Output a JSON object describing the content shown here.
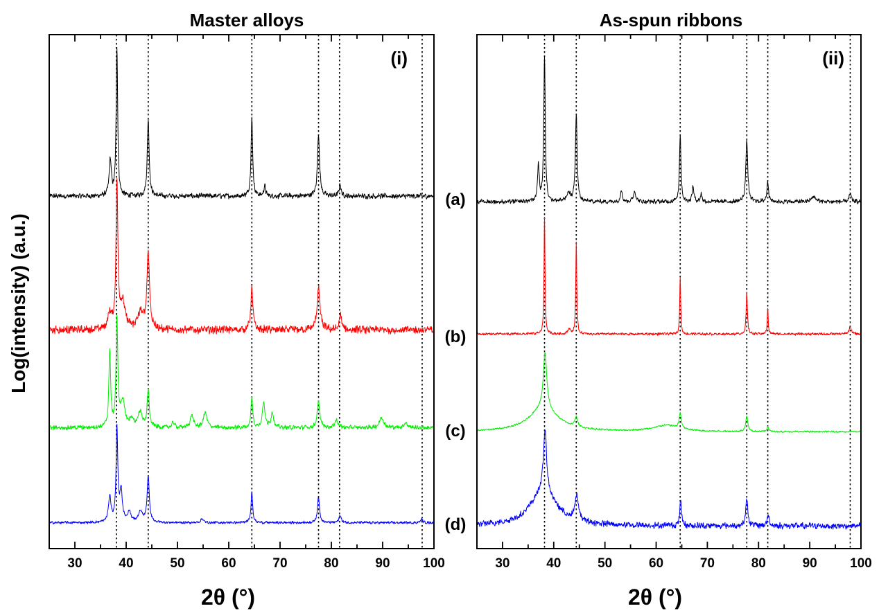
{
  "chart_data": [
    {
      "type": "line",
      "panel": "left",
      "title": "Master alloys",
      "tag": "(i)",
      "xlabel": "2θ (°)",
      "ylabel": "Log(intensity) (a.u.)",
      "xlim": [
        25,
        100
      ],
      "ylim": [
        0,
        1
      ],
      "xticks": [
        30,
        40,
        50,
        60,
        70,
        80,
        90,
        100
      ],
      "reference_lines": [
        38.1,
        44.3,
        64.5,
        77.5,
        81.6,
        97.7
      ],
      "series": [
        {
          "name": "(a)",
          "color": "#000000",
          "baseline": 0.6858,
          "noise": 0.006,
          "smooth": 1,
          "peaks": [
            [
              36.9,
              0.07,
              0.25
            ],
            [
              38.2,
              0.29,
              0.18
            ],
            [
              44.3,
              0.15,
              0.22
            ],
            [
              64.5,
              0.15,
              0.2
            ],
            [
              67.0,
              0.02,
              0.2
            ],
            [
              77.5,
              0.12,
              0.25
            ],
            [
              81.7,
              0.025,
              0.2
            ]
          ]
        },
        {
          "name": "(b)",
          "color": "#ff0000",
          "baseline": 0.4255,
          "noise": 0.009,
          "smooth": 1,
          "peaks": [
            [
              36.8,
              0.03,
              0.4
            ],
            [
              38.2,
              0.28,
              0.22
            ],
            [
              39.3,
              0.05,
              0.6
            ],
            [
              42.8,
              0.03,
              0.7
            ],
            [
              44.3,
              0.15,
              0.3
            ],
            [
              64.5,
              0.08,
              0.25
            ],
            [
              77.5,
              0.08,
              0.35
            ],
            [
              81.8,
              0.03,
              0.25
            ]
          ]
        },
        {
          "name": "(c)",
          "color": "#00ee00",
          "baseline": 0.2351,
          "noise": 0.005,
          "smooth": 1,
          "peaks": [
            [
              36.8,
              0.15,
              0.2
            ],
            [
              38.2,
              0.21,
              0.2
            ],
            [
              39.3,
              0.05,
              0.5
            ],
            [
              41.0,
              0.015,
              0.4
            ],
            [
              42.7,
              0.03,
              0.5
            ],
            [
              44.3,
              0.07,
              0.25
            ],
            [
              49.2,
              0.01,
              0.3
            ],
            [
              52.8,
              0.025,
              0.35
            ],
            [
              55.4,
              0.03,
              0.4
            ],
            [
              64.5,
              0.06,
              0.2
            ],
            [
              66.8,
              0.05,
              0.3
            ],
            [
              68.5,
              0.03,
              0.3
            ],
            [
              77.5,
              0.05,
              0.3
            ],
            [
              81.0,
              0.015,
              0.4
            ],
            [
              89.8,
              0.02,
              0.5
            ],
            [
              94.5,
              0.01,
              0.4
            ]
          ]
        },
        {
          "name": "(d)",
          "color": "#0000ff",
          "baseline": 0.0503,
          "noise": 0.003,
          "smooth": 1,
          "peaks": [
            [
              36.8,
              0.05,
              0.3
            ],
            [
              38.2,
              0.18,
              0.2
            ],
            [
              39.0,
              0.06,
              0.3
            ],
            [
              40.6,
              0.02,
              0.4
            ],
            [
              42.8,
              0.02,
              0.5
            ],
            [
              44.3,
              0.09,
              0.25
            ],
            [
              54.8,
              0.008,
              0.3
            ],
            [
              64.5,
              0.06,
              0.2
            ],
            [
              77.5,
              0.05,
              0.25
            ],
            [
              81.7,
              0.015,
              0.25
            ],
            [
              97.6,
              0.006,
              0.3
            ]
          ]
        }
      ]
    },
    {
      "type": "line",
      "panel": "right",
      "title": "As-spun ribbons",
      "tag": "(ii)",
      "xlabel": "2θ (°)",
      "xlim": [
        25,
        100
      ],
      "ylim": [
        0,
        1
      ],
      "xticks": [
        30,
        40,
        50,
        60,
        70,
        80,
        90,
        100
      ],
      "reference_lines": [
        38.2,
        44.4,
        64.7,
        77.7,
        81.8,
        97.9
      ],
      "series": [
        {
          "name": "(a)",
          "color": "#000000",
          "baseline": 0.6748,
          "noise": 0.005,
          "smooth": 1,
          "peaks": [
            [
              37.0,
              0.07,
              0.2
            ],
            [
              38.2,
              0.28,
              0.18
            ],
            [
              42.9,
              0.015,
              0.5
            ],
            [
              44.4,
              0.17,
              0.2
            ],
            [
              53.2,
              0.025,
              0.2
            ],
            [
              55.8,
              0.02,
              0.3
            ],
            [
              64.7,
              0.13,
              0.18
            ],
            [
              67.2,
              0.03,
              0.2
            ],
            [
              68.8,
              0.015,
              0.2
            ],
            [
              77.7,
              0.12,
              0.22
            ],
            [
              81.8,
              0.04,
              0.2
            ],
            [
              90.8,
              0.01,
              0.5
            ],
            [
              97.9,
              0.015,
              0.25
            ]
          ]
        },
        {
          "name": "(b)",
          "color": "#ff0000",
          "baseline": 0.4175,
          "noise": 0.003,
          "smooth": 1,
          "peaks": [
            [
              38.2,
              0.23,
              0.12
            ],
            [
              43.0,
              0.01,
              0.3
            ],
            [
              44.4,
              0.18,
              0.12
            ],
            [
              64.7,
              0.11,
              0.12
            ],
            [
              77.7,
              0.08,
              0.15
            ],
            [
              81.8,
              0.05,
              0.12
            ],
            [
              97.9,
              0.015,
              0.25
            ]
          ]
        },
        {
          "name": "(c)",
          "color": "#00ee00",
          "baseline": 0.2271,
          "noise": 0.002,
          "smooth": 1,
          "peaks": [
            [
              38.0,
              0.045,
              3.5
            ],
            [
              38.3,
              0.11,
              0.4
            ],
            [
              44.4,
              0.02,
              0.3
            ],
            [
              62.0,
              0.012,
              3.0
            ],
            [
              64.7,
              0.03,
              0.25
            ],
            [
              77.7,
              0.03,
              0.25
            ],
            [
              81.8,
              0.01,
              0.2
            ]
          ]
        },
        {
          "name": "(d)",
          "color": "#0000ff",
          "baseline": 0.0439,
          "noise": 0.007,
          "smooth": 1,
          "peaks": [
            [
              38.0,
              0.07,
              3.0
            ],
            [
              38.3,
              0.12,
              0.35
            ],
            [
              44.5,
              0.05,
              0.4
            ],
            [
              64.8,
              0.05,
              0.2
            ],
            [
              77.7,
              0.05,
              0.25
            ],
            [
              81.9,
              0.02,
              0.25
            ]
          ]
        }
      ]
    }
  ]
}
